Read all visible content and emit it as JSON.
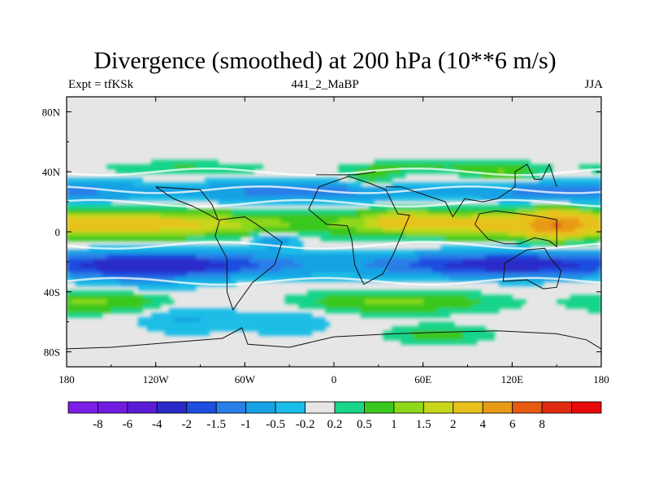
{
  "chart_data": {
    "type": "heatmap",
    "title": "Divergence (smoothed) at 200 hPa (10**6 m/s)",
    "left_string": "Expt = tfKSk",
    "center_string": "441_2_MaBP",
    "right_string": "JJA",
    "xlabel": "",
    "ylabel": "",
    "xlim": [
      -180,
      180
    ],
    "ylim": [
      -90,
      90
    ],
    "x_ticks": [
      {
        "value": -180,
        "label": "180"
      },
      {
        "value": -120,
        "label": "120W"
      },
      {
        "value": -60,
        "label": "60W"
      },
      {
        "value": 0,
        "label": "0"
      },
      {
        "value": 60,
        "label": "60E"
      },
      {
        "value": 120,
        "label": "120E"
      },
      {
        "value": 180,
        "label": "180"
      }
    ],
    "y_ticks": [
      {
        "value": 80,
        "label": "80N"
      },
      {
        "value": 40,
        "label": "40N"
      },
      {
        "value": 0,
        "label": "0"
      },
      {
        "value": -40,
        "label": "40S"
      },
      {
        "value": -80,
        "label": "80S"
      }
    ],
    "colorbar": {
      "colors": [
        "#7b1fe6",
        "#6f1ce0",
        "#5a1ad6",
        "#2a2ac8",
        "#1e4ee0",
        "#2a7ee8",
        "#16a2e4",
        "#1bbde6",
        "#e6e6e6",
        "#19d489",
        "#3ac81e",
        "#8ed81a",
        "#c8d61a",
        "#e8c21a",
        "#e89a16",
        "#e65a14",
        "#e02a12",
        "#e60a0a"
      ],
      "labels": [
        "-8",
        "-6",
        "-4",
        "-2",
        "-1.5",
        "-1",
        "-0.5",
        "-0.2",
        "0.2",
        "0.5",
        "1",
        "1.5",
        "2",
        "4",
        "6",
        "8"
      ]
    },
    "field_levels": [
      -0.2,
      0.2,
      0.5,
      1,
      1.5,
      2,
      4,
      6
    ],
    "field_description": "zonal banded divergence field: convergence (negative, blue) near 25N-35N and 10S-35S; divergence (positive, orange/red) along 0-15N; near-zero grey over polar regions"
  }
}
